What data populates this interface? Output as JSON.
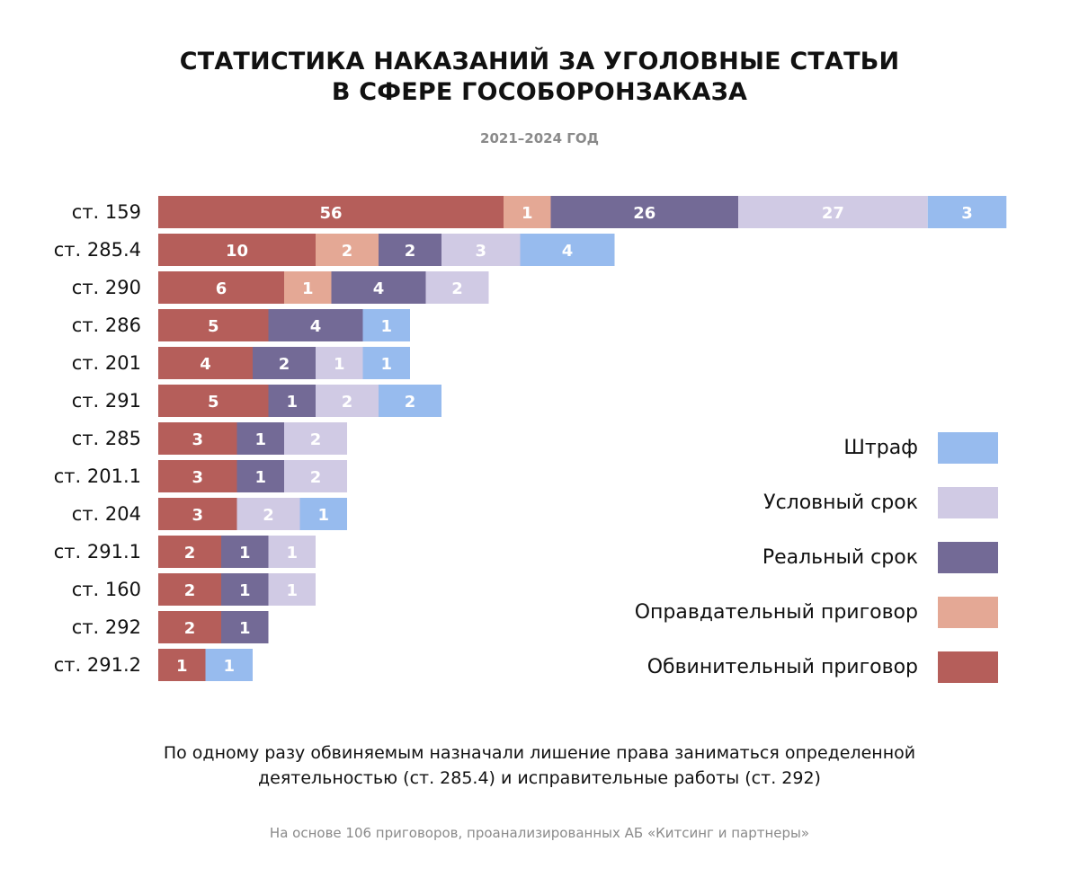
{
  "header": {
    "title_line1": "СТАТИСТИКА НАКАЗАНИЙ ЗА УГОЛОВНЫЕ СТАТЬИ",
    "title_line2": "В СФЕРЕ ГОСОБОРОНЗАКАЗА",
    "subtitle": "2021–2024 ГОД"
  },
  "colors": {
    "Обвинительный приговор": "#b55e5a",
    "Оправдательный приговор": "#e4a895",
    "Реальный срок": "#736a96",
    "Условный срок": "#d0cae4",
    "Штраф": "#97bbee"
  },
  "chart_data": {
    "type": "bar",
    "orientation": "horizontal",
    "stacked": true,
    "title": "СТАТИСТИКА НАКАЗАНИЙ ЗА УГОЛОВНЫЕ СТАТЬИ В СФЕРЕ ГОСОБОРОНЗАКАЗА",
    "subtitle": "2021–2024 ГОД",
    "xlabel": "",
    "ylabel": "",
    "grid": false,
    "legend_position": "right",
    "categories": [
      "ст. 159",
      "ст. 285.4",
      "ст. 290",
      "ст. 286",
      "ст. 201",
      "ст. 291",
      "ст. 285",
      "ст. 201.1",
      "ст. 204",
      "ст. 291.1",
      "ст. 160",
      "ст. 292",
      "ст. 291.2"
    ],
    "series": [
      {
        "name": "Обвинительный приговор",
        "values": [
          56,
          10,
          6,
          5,
          4,
          5,
          3,
          3,
          3,
          2,
          2,
          2,
          1
        ]
      },
      {
        "name": "Оправдательный приговор",
        "values": [
          1,
          2,
          1,
          0,
          0,
          0,
          0,
          0,
          0,
          0,
          0,
          0,
          0
        ]
      },
      {
        "name": "Реальный срок",
        "values": [
          26,
          2,
          4,
          4,
          2,
          1,
          1,
          1,
          0,
          1,
          1,
          1,
          0
        ]
      },
      {
        "name": "Условный срок",
        "values": [
          27,
          3,
          2,
          0,
          1,
          2,
          2,
          2,
          2,
          1,
          1,
          0,
          0
        ]
      },
      {
        "name": "Штраф",
        "values": [
          3,
          4,
          0,
          1,
          1,
          2,
          0,
          0,
          1,
          0,
          0,
          0,
          1
        ]
      }
    ]
  },
  "legend": [
    {
      "label": "Штраф",
      "series": "Штраф"
    },
    {
      "label": "Условный срок",
      "series": "Условный срок"
    },
    {
      "label": "Реальный срок",
      "series": "Реальный срок"
    },
    {
      "label": "Оправдательный приговор",
      "series": "Оправдательный приговор"
    },
    {
      "label": "Обвинительный приговор",
      "series": "Обвинительный приговор"
    }
  ],
  "footer": {
    "note_line1": "По одному разу обвиняемым назначали лишение права заниматься определенной",
    "note_line2": "деятельностью (ст. 285.4) и исправительные работы (ст. 292)",
    "source": "На основе 106 приговоров, проанализированных АБ «Китсинг и партнеры»"
  }
}
